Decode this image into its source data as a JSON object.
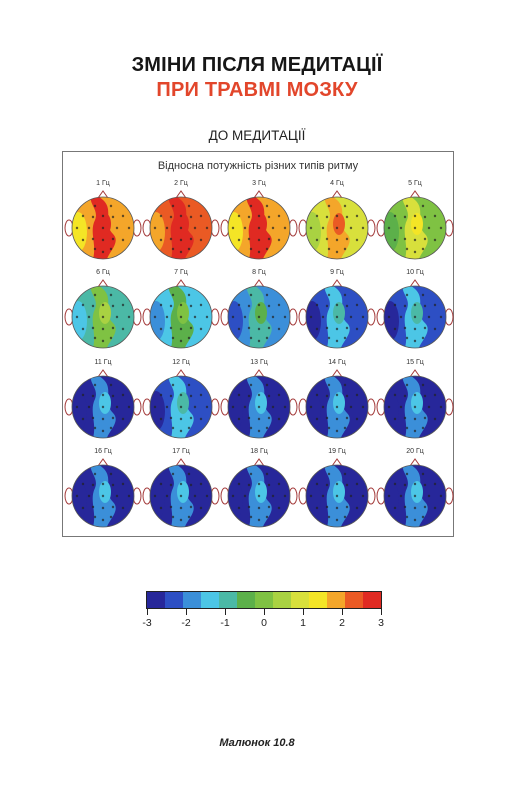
{
  "heading": {
    "line1": "ЗМІНИ ПІСЛЯ МЕДИТАЦІЇ",
    "line2": "ПРИ ТРАВМІ МОЗКУ",
    "line1_color": "#161616",
    "line2_color": "#e2462b"
  },
  "subtitle": "ДО МЕДИТАЦІЇ",
  "panel": {
    "title": "Відносна потужність різних типів ритму",
    "maps": [
      {
        "label": "1 Гц",
        "level": 2.3
      },
      {
        "label": "2 Гц",
        "level": 2.8
      },
      {
        "label": "3 Гц",
        "level": 2.6
      },
      {
        "label": "4 Гц",
        "level": 1.2
      },
      {
        "label": "5 Гц",
        "level": 0.4
      },
      {
        "label": "6 Гц",
        "level": -0.4
      },
      {
        "label": "7 Гц",
        "level": -1.2
      },
      {
        "label": "8 Гц",
        "level": -1.8
      },
      {
        "label": "9 Гц",
        "level": -1.9
      },
      {
        "label": "10 Гц",
        "level": -2.3
      },
      {
        "label": "11 Гц",
        "level": -2.4
      },
      {
        "label": "12 Гц",
        "level": -2.3
      },
      {
        "label": "13 Гц",
        "level": -2.5
      },
      {
        "label": "14 Гц",
        "level": -2.5
      },
      {
        "label": "15 Гц",
        "level": -2.4
      },
      {
        "label": "16 Гц",
        "level": -2.4
      },
      {
        "label": "17 Гц",
        "level": -2.4
      },
      {
        "label": "18 Гц",
        "level": -2.5
      },
      {
        "label": "19 Гц",
        "level": -2.5
      },
      {
        "label": "20 Гц",
        "level": -2.5
      }
    ]
  },
  "scale": {
    "colors": [
      "#27279a",
      "#2d4fc4",
      "#3b8fd9",
      "#4cc6e6",
      "#4bb9a6",
      "#5cb04a",
      "#7fc243",
      "#a9d242",
      "#d8e03c",
      "#f4e526",
      "#f4a62a",
      "#ea5a24",
      "#e02a22"
    ],
    "ticks": [
      "-3",
      "-2",
      "-1",
      "0",
      "1",
      "2",
      "3"
    ]
  },
  "caption": "Малюнок 10.8"
}
